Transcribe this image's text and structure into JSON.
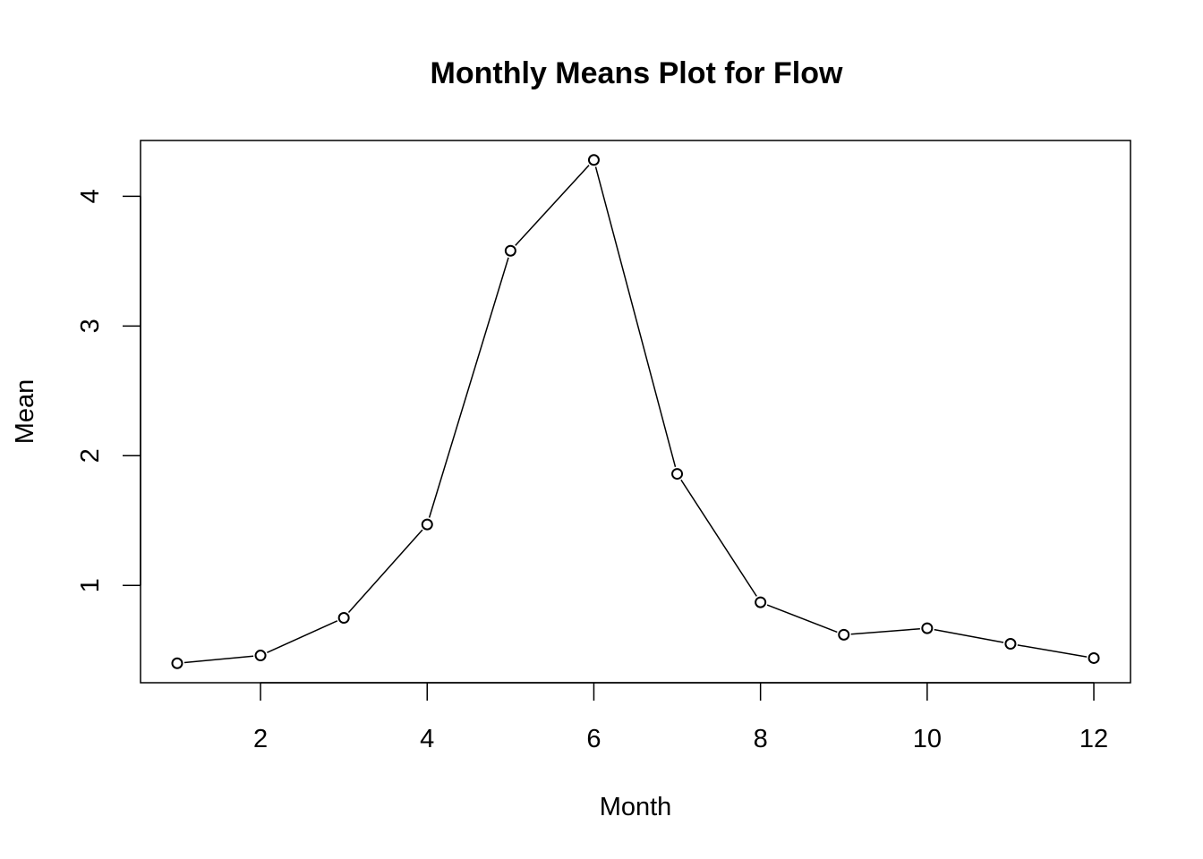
{
  "chart_data": {
    "type": "line",
    "title": "Monthly Means Plot for Flow",
    "xlabel": "Month",
    "ylabel": "Mean",
    "x": [
      1,
      2,
      3,
      4,
      5,
      6,
      7,
      8,
      9,
      10,
      11,
      12
    ],
    "series": [
      {
        "values": [
          0.4,
          0.46,
          0.75,
          1.47,
          3.58,
          4.28,
          1.86,
          0.87,
          0.62,
          0.67,
          0.55,
          0.44
        ]
      }
    ],
    "xlim": [
      0.56,
      12.44
    ],
    "ylim": [
      0.25,
      4.43
    ],
    "xticks": [
      2,
      4,
      6,
      8,
      10,
      12
    ],
    "yticks": [
      1,
      2,
      3,
      4
    ],
    "xtick_labels": [
      "2",
      "4",
      "6",
      "8",
      "10",
      "12"
    ],
    "ytick_labels": [
      "1",
      "2",
      "3",
      "4"
    ],
    "grid": false,
    "legend": "none",
    "marker": "open-circle",
    "line_color": "#000000"
  }
}
